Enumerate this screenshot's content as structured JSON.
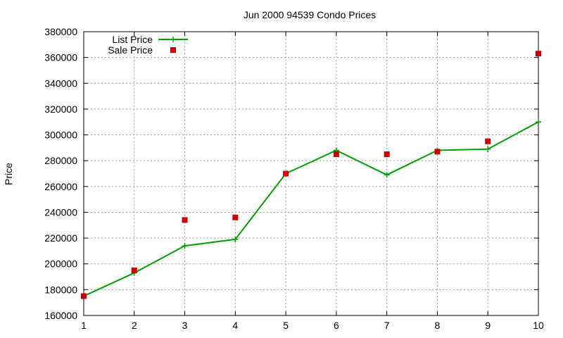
{
  "chart_data": {
    "type": "line",
    "title": "Jun 2000 94539 Condo Prices",
    "xlabel": "",
    "ylabel": "Price",
    "xlim": [
      1,
      10
    ],
    "ylim": [
      160000,
      380000
    ],
    "x_ticks": [
      1,
      2,
      3,
      4,
      5,
      6,
      7,
      8,
      9,
      10
    ],
    "y_ticks": [
      160000,
      180000,
      200000,
      220000,
      240000,
      260000,
      280000,
      300000,
      320000,
      340000,
      360000,
      380000
    ],
    "grid": true,
    "legend_position": "top-left",
    "series": [
      {
        "name": "List Price",
        "style": "line-with-plus-markers",
        "color": "#00a000",
        "x": [
          1,
          2,
          3,
          4,
          5,
          6,
          7,
          8,
          9,
          10
        ],
        "y": [
          175000,
          193000,
          214000,
          219000,
          270000,
          288000,
          269000,
          288000,
          289000,
          310000
        ]
      },
      {
        "name": "Sale Price",
        "style": "square-markers",
        "color": "#cc0000",
        "x": [
          1,
          2,
          3,
          4,
          5,
          6,
          7,
          8,
          9,
          10
        ],
        "y": [
          175000,
          195000,
          234000,
          236000,
          270000,
          285000,
          285000,
          287000,
          295000,
          363000
        ]
      }
    ]
  }
}
